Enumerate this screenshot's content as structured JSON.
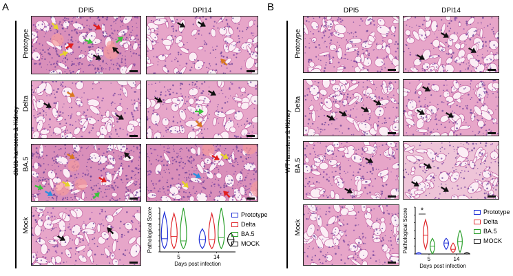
{
  "panelA": {
    "letter": "A",
    "columns": [
      "DPI5",
      "DPI14"
    ],
    "rows": [
      "Prototype",
      "Delta",
      "BA.5",
      "Mock"
    ],
    "side_label": "db/db hamsters & Kidney",
    "chart": {
      "ylabel": "Pathological Score",
      "xlabel": "Days post infection",
      "y_ticks": [
        "0",
        "5",
        "10",
        "15",
        "20",
        "25",
        "30",
        "35",
        "40"
      ],
      "x_ticks": [
        "5",
        "14"
      ]
    }
  },
  "panelB": {
    "letter": "B",
    "columns": [
      "DPI5",
      "DPI14"
    ],
    "rows": [
      "Prototype",
      "Delta",
      "BA.5",
      "Mock"
    ],
    "side_label": "WT hamsters & Kidney",
    "chart": {
      "ylabel": "Pathological Score",
      "xlabel": "Days post infection",
      "y_ticks": [
        "0",
        "5",
        "10",
        "15",
        "20",
        "25",
        "30"
      ],
      "x_ticks": [
        "5",
        "14"
      ],
      "significance": "*"
    }
  },
  "legend": [
    {
      "name": "Prototype",
      "color": "#1f2fd6"
    },
    {
      "name": "Delta",
      "color": "#e0262b"
    },
    {
      "name": "BA.5",
      "color": "#2ca02c"
    },
    {
      "name": "MOCK",
      "color": "#111111"
    }
  ],
  "arrow_colors": {
    "black": "#111111",
    "red": "#e01e1e",
    "yellow": "#e6d22a",
    "green": "#3cc23c",
    "orange": "#d9771e",
    "blue": "#2a8fe0"
  },
  "chart_data": [
    {
      "type": "violin",
      "panel": "A",
      "ylabel": "Pathological Score",
      "xlabel": "Days post infection",
      "ylim": [
        0,
        40
      ],
      "categories": [
        "5",
        "14"
      ],
      "series": [
        {
          "name": "Prototype",
          "color": "#1f2fd6",
          "medians": [
            12,
            11
          ],
          "ranges": [
            [
              3,
              36
            ],
            [
              3,
              21
            ]
          ]
        },
        {
          "name": "Delta",
          "color": "#e0262b",
          "medians": [
            14,
            11
          ],
          "ranges": [
            [
              3,
              35
            ],
            [
              3,
              35
            ]
          ]
        },
        {
          "name": "BA.5",
          "color": "#2ca02c",
          "medians": [
            10,
            13
          ],
          "ranges": [
            [
              3,
              40
            ],
            [
              3,
              40
            ]
          ]
        },
        {
          "name": "MOCK",
          "color": "#111111",
          "medians": [
            null,
            11
          ],
          "ranges": [
            null,
            [
              5,
              17
            ]
          ]
        }
      ]
    },
    {
      "type": "violin",
      "panel": "B",
      "ylabel": "Pathological Score",
      "xlabel": "Days post infection",
      "ylim": [
        0,
        30
      ],
      "categories": [
        "5",
        "14"
      ],
      "series": [
        {
          "name": "Prototype",
          "color": "#1f2fd6",
          "medians": [
            0,
            7
          ],
          "ranges": [
            [
              0,
              1
            ],
            [
              3,
              10
            ]
          ]
        },
        {
          "name": "Delta",
          "color": "#e0262b",
          "medians": [
            12,
            3
          ],
          "ranges": [
            [
              3,
              22
            ],
            [
              1,
              7
            ]
          ]
        },
        {
          "name": "BA.5",
          "color": "#2ca02c",
          "medians": [
            5,
            8
          ],
          "ranges": [
            [
              0,
              10
            ],
            [
              1,
              15
            ]
          ]
        },
        {
          "name": "MOCK",
          "color": "#111111",
          "medians": [
            null,
            0
          ],
          "ranges": [
            null,
            [
              0,
              1
            ]
          ]
        }
      ]
    }
  ]
}
